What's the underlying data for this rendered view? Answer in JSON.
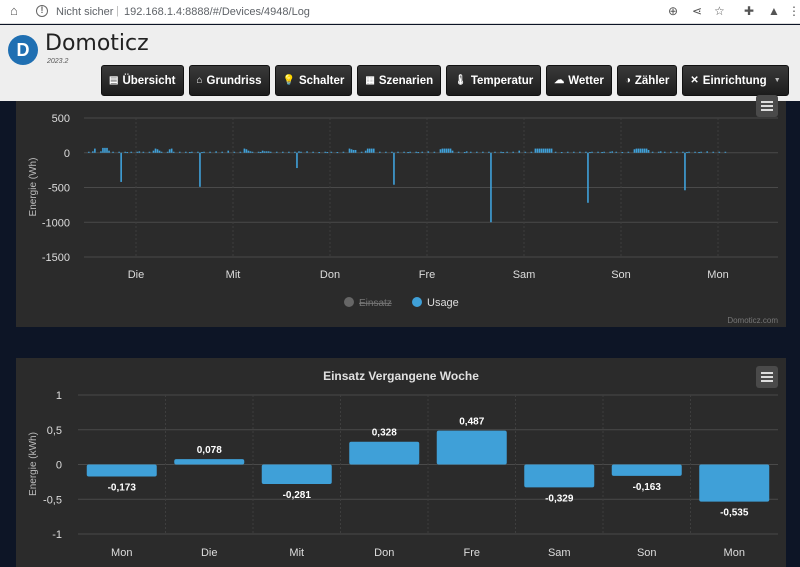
{
  "browser": {
    "security": "Nicht sicher",
    "url": "192.168.1.4:8888/#/Devices/4948/Log"
  },
  "app": {
    "name": "Domoticz",
    "version": "2023.2"
  },
  "nav": [
    {
      "label": "Übersicht",
      "icon": "overview-icon",
      "glyph": "▤"
    },
    {
      "label": "Grundriss",
      "icon": "floorplan-icon",
      "glyph": "⌂"
    },
    {
      "label": "Schalter",
      "icon": "lightbulb-icon",
      "glyph": "💡"
    },
    {
      "label": "Szenarien",
      "icon": "scenes-icon",
      "glyph": "▦"
    },
    {
      "label": "Temperatur",
      "icon": "thermometer-icon",
      "glyph": "🌡"
    },
    {
      "label": "Wetter",
      "icon": "weather-icon",
      "glyph": "☁"
    },
    {
      "label": "Zähler",
      "icon": "meter-icon",
      "glyph": "◑"
    },
    {
      "label": "Einrichtung",
      "icon": "tools-icon",
      "glyph": "✕"
    }
  ],
  "panel1": {
    "credits": "Domoticz.com",
    "ylabel": "Energie (Wh)"
  },
  "panel2": {
    "title": "Einsatz Vergangene Woche",
    "ylabel": "Energie (kWh)"
  },
  "chart_data": [
    {
      "type": "bar",
      "ylabel": "Energie (Wh)",
      "ylim": [
        -1500,
        500
      ],
      "yticks": [
        500,
        0,
        -500,
        -1000,
        -1500
      ],
      "x_labels": [
        "Die",
        "Mit",
        "Don",
        "Fre",
        "Sam",
        "Son",
        "Mon"
      ],
      "legend": [
        {
          "name": "Einsatz",
          "color": "#666666",
          "hidden": true
        },
        {
          "name": "Usage",
          "color": "#3fa0d8",
          "hidden": false
        }
      ],
      "series": [
        {
          "name": "Usage",
          "color": "#3fa0d8",
          "daily_values": [
            [
              0,
              0,
              20,
              60,
              0,
              0,
              20,
              70,
              70,
              70,
              30,
              0,
              0,
              0,
              0,
              0,
              -420,
              0,
              0,
              10,
              0,
              0,
              0,
              0,
              0,
              20,
              0,
              0,
              0,
              0,
              0,
              0,
              30,
              60,
              50,
              30,
              0,
              0,
              0,
              0,
              50,
              60,
              0,
              0,
              0,
              0,
              0,
              0
            ],
            [
              0,
              0,
              10,
              0,
              0,
              0,
              0,
              -490,
              10,
              0,
              0,
              0,
              0,
              0,
              0,
              20,
              0,
              0,
              0,
              0,
              0,
              30,
              0,
              0,
              0,
              0,
              0,
              0,
              0,
              60,
              50,
              30,
              20,
              0,
              0,
              0,
              0,
              10,
              30,
              20,
              20,
              20,
              0,
              0,
              0,
              0,
              0,
              0
            ],
            [
              0,
              0,
              0,
              0,
              0,
              0,
              0,
              -220,
              20,
              0,
              0,
              0,
              20,
              0,
              0,
              0,
              0,
              0,
              10,
              0,
              0,
              0,
              10,
              0,
              0,
              0,
              0,
              10,
              0,
              0,
              0,
              0,
              0,
              60,
              50,
              40,
              40,
              0,
              0,
              0,
              0,
              30,
              60,
              60,
              60,
              60,
              0,
              0
            ],
            [
              0,
              0,
              0,
              0,
              0,
              0,
              0,
              -460,
              0,
              0,
              0,
              0,
              0,
              0,
              10,
              0,
              0,
              0,
              0,
              10,
              0,
              0,
              0,
              0,
              20,
              0,
              0,
              0,
              0,
              0,
              50,
              60,
              60,
              60,
              60,
              60,
              30,
              0,
              0,
              0,
              0,
              0,
              10,
              20,
              0,
              0,
              0,
              0
            ],
            [
              0,
              0,
              0,
              0,
              0,
              0,
              0,
              -1000,
              0,
              0,
              0,
              0,
              0,
              10,
              0,
              0,
              0,
              0,
              0,
              0,
              0,
              30,
              0,
              0,
              0,
              0,
              0,
              0,
              0,
              60,
              60,
              60,
              60,
              60,
              60,
              60,
              60,
              60,
              0,
              0,
              0,
              0,
              10,
              0,
              0,
              0,
              0,
              0
            ],
            [
              0,
              0,
              0,
              0,
              0,
              0,
              0,
              -720,
              10,
              0,
              0,
              0,
              0,
              0,
              10,
              0,
              0,
              0,
              0,
              20,
              0,
              0,
              0,
              0,
              10,
              0,
              0,
              0,
              0,
              0,
              50,
              60,
              60,
              60,
              60,
              60,
              60,
              40,
              0,
              0,
              0,
              0,
              0,
              20,
              0,
              0,
              0,
              0
            ],
            [
              0,
              0,
              0,
              0,
              0,
              0,
              0,
              -540,
              10,
              0,
              0,
              0,
              0,
              0,
              10,
              0,
              0,
              0,
              20,
              0,
              0,
              0,
              0,
              0,
              0,
              0,
              0,
              0,
              0,
              0
            ]
          ]
        }
      ]
    },
    {
      "type": "bar",
      "title": "Einsatz Vergangene Woche",
      "ylabel": "Energie (kWh)",
      "ylim": [
        -1,
        1
      ],
      "yticks": [
        "1",
        "0,5",
        "0",
        "-0,5",
        "-1"
      ],
      "categories": [
        "Mon",
        "Die",
        "Mit",
        "Don",
        "Fre",
        "Sam",
        "Son",
        "Mon"
      ],
      "values": [
        -0.173,
        0.078,
        -0.281,
        0.328,
        0.487,
        -0.329,
        -0.163,
        -0.535
      ],
      "labels": [
        "-0,173",
        "0,078",
        "-0,281",
        "0,328",
        "0,487",
        "-0,329",
        "-0,163",
        "-0,535"
      ],
      "color": "#3fa0d8"
    }
  ]
}
